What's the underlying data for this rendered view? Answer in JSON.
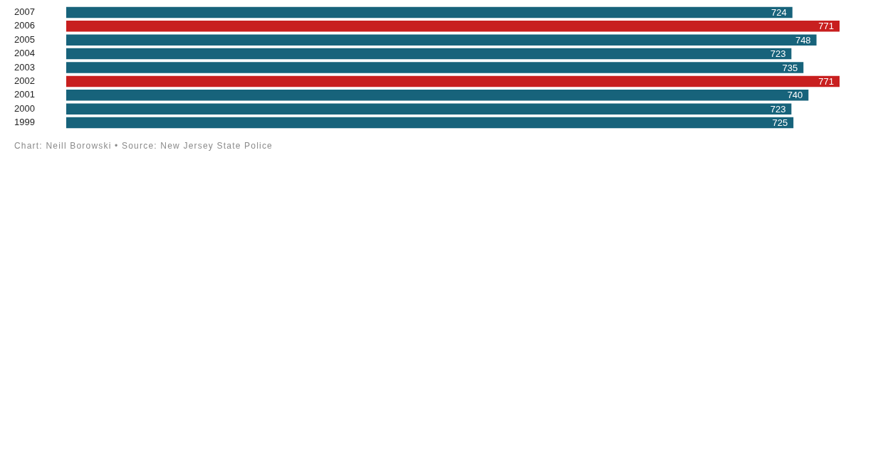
{
  "chart_data": {
    "type": "bar",
    "orientation": "horizontal",
    "categories": [
      "2007",
      "2006",
      "2005",
      "2004",
      "2003",
      "2002",
      "2001",
      "2000",
      "1999"
    ],
    "values": [
      724,
      771,
      748,
      723,
      735,
      771,
      740,
      723,
      725
    ],
    "colors": [
      "#17637b",
      "#c81f1f",
      "#17637b",
      "#17637b",
      "#17637b",
      "#c81f1f",
      "#17637b",
      "#17637b",
      "#17637b"
    ],
    "xlim": [
      0,
      771
    ],
    "data_labels": true,
    "grid": false,
    "legend": false,
    "tick_labels": "y",
    "annotations": [
      "Chart: Neill Borowski • Source: New Jersey State Police"
    ]
  }
}
